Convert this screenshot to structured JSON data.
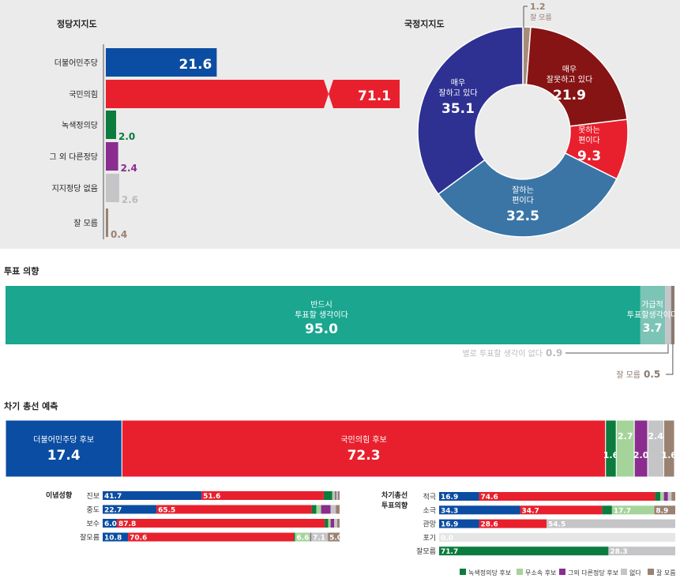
{
  "colors": {
    "dem": "#0b4da2",
    "ppp": "#e8202d",
    "green": "#0c7b3e",
    "ind": "#a5d49b",
    "other": "#8b2c8f",
    "none": "#c5c5c7",
    "unsure": "#9a8272",
    "teal": "#1aa68f",
    "teal2": "#7cc4b6",
    "pie_dark": "#2e3192",
    "pie_mid": "#3a75a6",
    "pie_maroon": "#861414",
    "pie_red": "#e8202d",
    "pie_tan": "#a68b79",
    "panel": "#ebebeb"
  },
  "chart_data": [
    {
      "type": "bar",
      "title": "정당지지도",
      "categories": [
        "더불어민주당",
        "국민의힘",
        "녹색정의당",
        "그 외 다른정당",
        "지지정당 없음",
        "잘 모름"
      ],
      "values": [
        21.6,
        71.1,
        2.0,
        2.4,
        2.6,
        0.4
      ]
    },
    {
      "type": "pie",
      "title": "국정지지도",
      "slices": [
        {
          "label": "잘 모름",
          "value": 1.2
        },
        {
          "label": "매우 잘못하고 있다",
          "value": 21.9
        },
        {
          "label": "못하는 편이다",
          "value": 9.3
        },
        {
          "label": "잘하는 편이다",
          "value": 32.5
        },
        {
          "label": "매우 잘하고 있다",
          "value": 35.1
        }
      ]
    },
    {
      "type": "bar",
      "title": "투표 의향",
      "segments": [
        {
          "label": "반드시 투표할 생각이다",
          "value": 95.0
        },
        {
          "label": "가급적 투표할생각이다",
          "value": 3.7
        },
        {
          "label": "별로 투표할 생각이 없다",
          "value": 0.9
        },
        {
          "label": "잘 모름",
          "value": 0.5
        }
      ]
    },
    {
      "type": "bar",
      "title": "차기 총선 예측",
      "segments": [
        {
          "label": "더불어민주당 후보",
          "value": 17.4
        },
        {
          "label": "국민의힘 후보",
          "value": 72.3
        },
        {
          "label": "녹색정의당 후보",
          "value": 1.6
        },
        {
          "label": "무소속 후보",
          "value": 2.7
        },
        {
          "label": "그외 다른정당 후보",
          "value": 2.0
        },
        {
          "label": "없다",
          "value": 2.4
        },
        {
          "label": "잘 모름",
          "value": 1.6
        }
      ]
    },
    {
      "type": "bar",
      "title": "이념성향",
      "rows": [
        {
          "label": "진보",
          "values": [
            41.7,
            51.6,
            3.6,
            1.2,
            0.4,
            0.8,
            0.7
          ],
          "shown": [
            "41.7",
            "51.6",
            "",
            "",
            "",
            "",
            ""
          ]
        },
        {
          "label": "중도",
          "values": [
            22.7,
            65.5,
            2.0,
            2.0,
            4.0,
            2.2,
            1.6
          ],
          "shown": [
            "22.7",
            "65.5",
            "",
            "",
            "",
            "",
            ""
          ]
        },
        {
          "label": "보수",
          "values": [
            6.0,
            87.8,
            1.4,
            1.0,
            1.5,
            1.3,
            1.0
          ],
          "shown": [
            "6.0",
            "87.8",
            "",
            "",
            "",
            "",
            ""
          ]
        },
        {
          "label": "잘모름",
          "values": [
            10.8,
            70.6,
            0.5,
            6.6,
            0.3,
            7.1,
            5.0
          ],
          "shown": [
            "10.8",
            "70.6",
            "",
            "6.6",
            "",
            "7.1",
            "5.0"
          ]
        }
      ]
    },
    {
      "type": "bar",
      "title": "차기총선 투표의향",
      "rows": [
        {
          "label": "적극",
          "values": [
            16.9,
            74.6,
            2.2,
            1.5,
            1.7,
            1.5,
            1.6
          ],
          "shown": [
            "16.9",
            "74.6",
            "",
            "",
            "",
            "",
            ""
          ]
        },
        {
          "label": "소극",
          "values": [
            34.3,
            34.7,
            4.2,
            17.7,
            0.0,
            0.2,
            8.9
          ],
          "shown": [
            "34.3",
            "34.7",
            "",
            "17.7",
            "",
            "",
            "8.9"
          ]
        },
        {
          "label": "관망",
          "values": [
            16.9,
            28.6,
            0.0,
            0.0,
            0.0,
            54.5,
            0.0
          ],
          "shown": [
            "16.9",
            "28.6",
            "",
            "",
            "",
            "54.5",
            ""
          ]
        },
        {
          "label": "포기",
          "values": [
            0.0,
            0.0,
            0.0,
            0.0,
            0.0,
            0.0,
            0.0
          ],
          "shown": [
            "0.0",
            "",
            "",
            "",
            "",
            "",
            ""
          ]
        },
        {
          "label": "잘모름",
          "values": [
            0.0,
            0.0,
            71.7,
            0.0,
            0.0,
            28.3,
            0.0
          ],
          "shown": [
            "",
            "",
            "71.7",
            "",
            "",
            "28.3",
            ""
          ]
        }
      ]
    }
  ],
  "legend": [
    "녹색정의당 후보",
    "무소속 후보",
    "그외 다른정당 후보",
    "없다",
    "잘 모름"
  ]
}
